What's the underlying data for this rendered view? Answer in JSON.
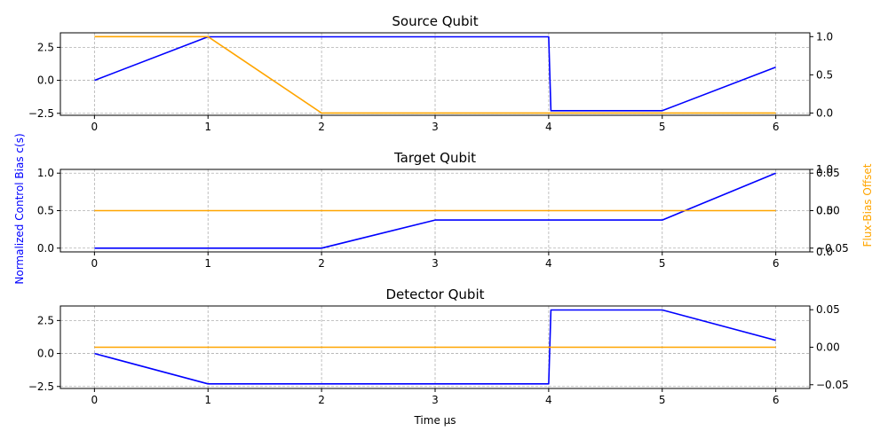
{
  "figure": {
    "ylabel_left": "Normalized Control Bias c(s)",
    "ylabel_right": "Flux-Bias Offset",
    "xlabel": "Time μs"
  },
  "chart_data": [
    {
      "type": "line",
      "title": "Source Qubit",
      "xlim": [
        -0.3,
        6.3
      ],
      "x_ticks": [
        0,
        1,
        2,
        3,
        4,
        5,
        6
      ],
      "ylim_left": [
        -2.65,
        3.6
      ],
      "y_ticks_left": [
        -2.5,
        0.0,
        2.5
      ],
      "ylim_right": [
        -0.03,
        1.05
      ],
      "y_ticks_right": [
        0.0,
        0.5,
        1.0
      ],
      "grid": true,
      "series": [
        {
          "axis": "left",
          "color": "#0000ff",
          "x": [
            0,
            1,
            2,
            3,
            4,
            4.02,
            5,
            6
          ],
          "y": [
            0.0,
            3.3,
            3.3,
            3.3,
            3.3,
            -2.3,
            -2.3,
            1.0
          ]
        },
        {
          "axis": "right",
          "color": "#ffa500",
          "x": [
            0,
            1,
            2,
            3,
            4,
            5,
            6
          ],
          "y": [
            1.0,
            1.0,
            0.0,
            0.0,
            0.0,
            0.0,
            0.0
          ]
        }
      ]
    },
    {
      "type": "line",
      "title": "Target Qubit",
      "xlim": [
        -0.3,
        6.3
      ],
      "x_ticks": [
        0,
        1,
        2,
        3,
        4,
        5,
        6
      ],
      "ylim_left": [
        -0.05,
        1.05
      ],
      "y_ticks_left": [
        0.0,
        0.5,
        1.0
      ],
      "ylim_right": [
        -0.055,
        0.055
      ],
      "y_ticks_right": [
        -0.05,
        0.0,
        0.05
      ],
      "overlap_right_ticks": [
        "0.0",
        "0.5",
        "1.0"
      ],
      "grid": true,
      "series": [
        {
          "axis": "left",
          "color": "#0000ff",
          "x": [
            0,
            1,
            2,
            3,
            4,
            5,
            6
          ],
          "y": [
            0.0,
            0.0,
            0.0,
            0.375,
            0.375,
            0.375,
            1.0
          ]
        },
        {
          "axis": "right",
          "color": "#ffa500",
          "x": [
            0,
            1,
            2,
            3,
            4,
            5,
            6
          ],
          "y": [
            0.0,
            0.0,
            0.0,
            0.0,
            0.0,
            0.0,
            0.0
          ]
        }
      ]
    },
    {
      "type": "line",
      "title": "Detector Qubit",
      "xlim": [
        -0.3,
        6.3
      ],
      "x_ticks": [
        0,
        1,
        2,
        3,
        4,
        5,
        6
      ],
      "ylim_left": [
        -2.65,
        3.6
      ],
      "y_ticks_left": [
        -2.5,
        0.0,
        2.5
      ],
      "ylim_right": [
        -0.055,
        0.055
      ],
      "y_ticks_right": [
        -0.05,
        0.0,
        0.05
      ],
      "grid": true,
      "series": [
        {
          "axis": "left",
          "color": "#0000ff",
          "x": [
            0,
            1,
            2,
            3,
            4,
            4.02,
            5,
            6
          ],
          "y": [
            0.0,
            -2.3,
            -2.3,
            -2.3,
            -2.3,
            3.3,
            3.3,
            1.0
          ]
        },
        {
          "axis": "right",
          "color": "#ffa500",
          "x": [
            0,
            1,
            2,
            3,
            4,
            5,
            6
          ],
          "y": [
            0.0,
            0.0,
            0.0,
            0.0,
            0.0,
            0.0,
            0.0
          ]
        }
      ]
    }
  ]
}
